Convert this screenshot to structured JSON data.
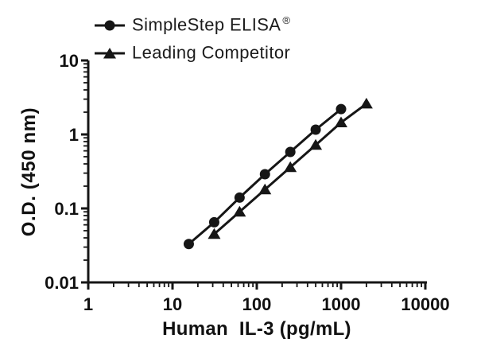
{
  "figure": {
    "background": "#ffffff",
    "ink_color": "#161616"
  },
  "legend": {
    "position": "top-left",
    "items": [
      {
        "label": "SimpleStep ELISA",
        "sup": "®",
        "marker": "circle"
      },
      {
        "label": "Leading Competitor",
        "sup": "",
        "marker": "triangle"
      }
    ]
  },
  "chart_data": {
    "type": "line",
    "title": "",
    "xlabel": "Human  IL-3 (pg/mL)",
    "ylabel": "O.D. (450 nm)",
    "x_scale": "log",
    "y_scale": "log",
    "xlim": [
      1,
      10000
    ],
    "ylim": [
      0.01,
      10
    ],
    "x_ticks": [
      1,
      10,
      100,
      1000,
      10000
    ],
    "x_tick_labels": [
      "1",
      "10",
      "100",
      "1000",
      "10000"
    ],
    "y_ticks": [
      0.01,
      0.1,
      1,
      10
    ],
    "y_tick_labels": [
      "0.01",
      "0.1",
      "1",
      "10"
    ],
    "minor_ticks": true,
    "grid": false,
    "legend_position": "top-left",
    "series": [
      {
        "name": "SimpleStep ELISA®",
        "marker": "circle",
        "color": "#161616",
        "x": [
          15.6,
          31.25,
          62.5,
          125,
          250,
          500,
          1000
        ],
        "y": [
          0.033,
          0.065,
          0.14,
          0.29,
          0.58,
          1.16,
          2.2
        ]
      },
      {
        "name": "Leading Competitor",
        "marker": "triangle",
        "color": "#161616",
        "x": [
          31.25,
          62.5,
          125,
          250,
          500,
          1000,
          2000
        ],
        "y": [
          0.045,
          0.09,
          0.18,
          0.36,
          0.72,
          1.45,
          2.6
        ]
      }
    ]
  }
}
